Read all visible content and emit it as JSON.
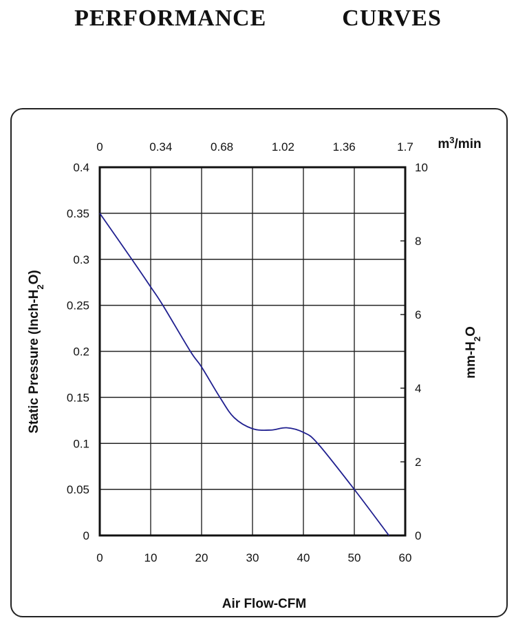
{
  "title": "PERFORMANCE    CURVES",
  "chart_data": {
    "type": "line",
    "title": "PERFORMANCE CURVES",
    "xlabel": "Air Flow-CFM",
    "ylabel": "Static Pressure (Inch-H2O)",
    "ylabel_parts": [
      "Static Pressure (Inch-H",
      "2",
      "O)"
    ],
    "y2label_parts": [
      "mm-H",
      "2",
      "O"
    ],
    "x2label_parts": [
      "m",
      "3",
      "/min"
    ],
    "xlim": [
      0,
      60
    ],
    "ylim": [
      0,
      0.4
    ],
    "y2lim": [
      0,
      10
    ],
    "x2lim": [
      0,
      1.7
    ],
    "grid": true,
    "x_ticks": [
      "0",
      "10",
      "20",
      "30",
      "40",
      "50",
      "60"
    ],
    "y_ticks": [
      "0",
      "0.05",
      "0.1",
      "0.15",
      "0.2",
      "0.25",
      "0.3",
      "0.35",
      "0.4"
    ],
    "x2_ticks": [
      "0",
      "0.34",
      "0.68",
      "1.02",
      "1.36",
      "1.7"
    ],
    "y2_ticks": [
      "0",
      "2",
      "4",
      "6",
      "8",
      "10"
    ],
    "series": [
      {
        "name": "Static Pressure",
        "color": "#1f1f8f",
        "x": [
          0,
          6.3,
          10,
          12.4,
          17.8,
          20,
          23.6,
          26.4,
          30,
          33.6,
          36.7,
          40,
          42.8,
          50,
          56.8
        ],
        "y": [
          0.35,
          0.3,
          0.27,
          0.25,
          0.2,
          0.183,
          0.15,
          0.128,
          0.116,
          0.1145,
          0.117,
          0.112,
          0.1,
          0.05,
          0
        ]
      }
    ]
  }
}
